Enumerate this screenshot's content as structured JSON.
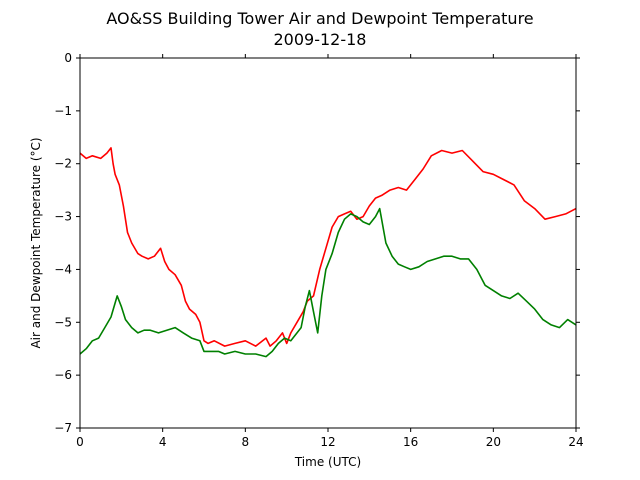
{
  "chart_data": {
    "type": "line",
    "title": "AO&SS Building Tower Air and Dewpoint Temperature",
    "subtitle": "2009-12-18",
    "xlabel": "Time (UTC)",
    "ylabel": "Air and Dewpoint Temperature (°C)",
    "xlim": [
      0,
      24
    ],
    "ylim": [
      -7,
      0
    ],
    "xticks": [
      "0",
      "4",
      "8",
      "12",
      "16",
      "20",
      "24"
    ],
    "yticks": [
      "0",
      "−1",
      "−2",
      "−3",
      "−4",
      "−5",
      "−6",
      "−7"
    ],
    "grid": false,
    "legend": "none",
    "series": [
      {
        "color": "#ff0000",
        "x": [
          0,
          0.3,
          0.6,
          1.0,
          1.3,
          1.5,
          1.6,
          1.7,
          1.9,
          2.1,
          2.3,
          2.5,
          2.8,
          3.0,
          3.3,
          3.6,
          3.9,
          4.1,
          4.3,
          4.6,
          4.9,
          5.1,
          5.3,
          5.6,
          5.8,
          6.0,
          6.2,
          6.5,
          7.0,
          7.5,
          8.0,
          8.5,
          9.0,
          9.2,
          9.5,
          9.8,
          10.0,
          10.2,
          10.5,
          10.8,
          11.0,
          11.3,
          11.6,
          11.9,
          12.2,
          12.5,
          12.8,
          13.1,
          13.4,
          13.7,
          14.0,
          14.3,
          14.6,
          15.0,
          15.4,
          15.8,
          16.2,
          16.6,
          17.0,
          17.5,
          18.0,
          18.5,
          19.0,
          19.5,
          20.0,
          20.5,
          21.0,
          21.5,
          22.0,
          22.5,
          23.0,
          23.5,
          24.0
        ],
        "values": [
          -1.8,
          -1.9,
          -1.85,
          -1.9,
          -1.8,
          -1.7,
          -2.0,
          -2.2,
          -2.4,
          -2.8,
          -3.3,
          -3.5,
          -3.7,
          -3.75,
          -3.8,
          -3.75,
          -3.6,
          -3.85,
          -4.0,
          -4.1,
          -4.3,
          -4.6,
          -4.75,
          -4.85,
          -5.0,
          -5.35,
          -5.4,
          -5.35,
          -5.45,
          -5.4,
          -5.35,
          -5.45,
          -5.3,
          -5.45,
          -5.35,
          -5.2,
          -5.4,
          -5.2,
          -5.0,
          -4.8,
          -4.6,
          -4.5,
          -4.0,
          -3.6,
          -3.2,
          -3.0,
          -2.95,
          -2.9,
          -3.05,
          -3.0,
          -2.8,
          -2.65,
          -2.6,
          -2.5,
          -2.45,
          -2.5,
          -2.3,
          -2.1,
          -1.85,
          -1.75,
          -1.8,
          -1.75,
          -1.95,
          -2.15,
          -2.2,
          -2.3,
          -2.4,
          -2.7,
          -2.85,
          -3.05,
          -3.0,
          -2.95,
          -2.85
        ]
      },
      {
        "color": "#008000",
        "x": [
          0,
          0.3,
          0.6,
          0.9,
          1.2,
          1.5,
          1.8,
          2.0,
          2.2,
          2.5,
          2.8,
          3.1,
          3.4,
          3.8,
          4.2,
          4.6,
          5.0,
          5.4,
          5.8,
          6.0,
          6.3,
          6.7,
          7.0,
          7.5,
          8.0,
          8.5,
          9.0,
          9.3,
          9.6,
          9.9,
          10.2,
          10.5,
          10.7,
          10.9,
          11.1,
          11.3,
          11.5,
          11.7,
          11.9,
          12.2,
          12.5,
          12.8,
          13.1,
          13.4,
          13.7,
          14.0,
          14.3,
          14.5,
          14.8,
          15.1,
          15.4,
          15.7,
          16.0,
          16.4,
          16.8,
          17.2,
          17.6,
          18.0,
          18.4,
          18.8,
          19.2,
          19.6,
          20.0,
          20.4,
          20.8,
          21.2,
          21.6,
          22.0,
          22.4,
          22.8,
          23.2,
          23.6,
          24.0
        ],
        "values": [
          -5.6,
          -5.5,
          -5.35,
          -5.3,
          -5.1,
          -4.9,
          -4.5,
          -4.7,
          -4.95,
          -5.1,
          -5.2,
          -5.15,
          -5.15,
          -5.2,
          -5.15,
          -5.1,
          -5.2,
          -5.3,
          -5.35,
          -5.55,
          -5.55,
          -5.55,
          -5.6,
          -5.55,
          -5.6,
          -5.6,
          -5.65,
          -5.55,
          -5.4,
          -5.3,
          -5.35,
          -5.2,
          -5.1,
          -4.7,
          -4.4,
          -4.8,
          -5.2,
          -4.5,
          -4.0,
          -3.7,
          -3.3,
          -3.05,
          -2.95,
          -3.0,
          -3.1,
          -3.15,
          -3.0,
          -2.85,
          -3.5,
          -3.75,
          -3.9,
          -3.95,
          -4.0,
          -3.95,
          -3.85,
          -3.8,
          -3.75,
          -3.75,
          -3.8,
          -3.8,
          -4.0,
          -4.3,
          -4.4,
          -4.5,
          -4.55,
          -4.45,
          -4.6,
          -4.75,
          -4.95,
          -5.05,
          -5.1,
          -4.95,
          -5.05
        ]
      }
    ]
  }
}
